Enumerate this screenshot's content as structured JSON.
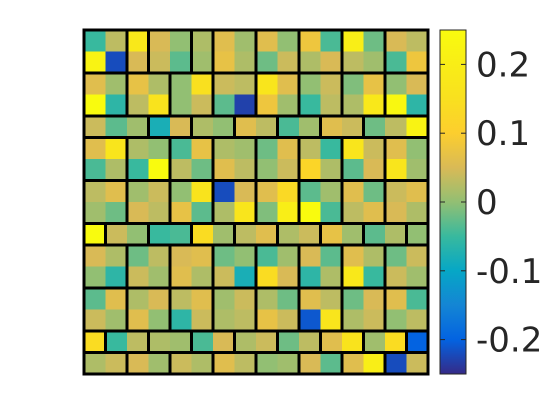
{
  "chart_data": {
    "type": "heatmap",
    "title": "",
    "xlabel": "",
    "ylabel": "",
    "grid_size": [
      16,
      16
    ],
    "colormap": "parula",
    "color_range": [
      -0.25,
      0.25
    ],
    "colorbar": {
      "ticks": [
        0.2,
        0.1,
        0,
        -0.1,
        -0.2
      ],
      "tick_labels": [
        "0.2",
        "0.1",
        "0",
        "-0.1",
        "-0.2"
      ],
      "placement": "right"
    },
    "regions_outlined": true,
    "values": [
      [
        -0.05,
        0.03,
        0.18,
        0.05,
        0.0,
        0.02,
        0.06,
        0.01,
        0.06,
        0.0,
        0.08,
        -0.04,
        0.2,
        -0.02,
        0.05,
        0.03
      ],
      [
        0.22,
        -0.22,
        0.05,
        0.04,
        -0.03,
        0.01,
        0.07,
        0.02,
        -0.02,
        0.04,
        0.02,
        0.05,
        0.03,
        0.01,
        -0.04,
        0.08
      ],
      [
        0.06,
        0.01,
        0.07,
        0.02,
        0.0,
        0.15,
        0.04,
        0.03,
        0.17,
        0.06,
        0.0,
        0.04,
        -0.01,
        0.07,
        0.0,
        0.05
      ],
      [
        0.25,
        -0.06,
        0.03,
        0.16,
        0.0,
        0.04,
        -0.03,
        -0.23,
        0.08,
        0.01,
        -0.05,
        0.03,
        0.02,
        0.18,
        0.24,
        -0.06
      ],
      [
        0.04,
        -0.03,
        0.01,
        -0.08,
        0.05,
        0.02,
        0.0,
        0.06,
        0.03,
        -0.04,
        0.01,
        0.06,
        0.04,
        -0.02,
        0.03,
        0.22
      ],
      [
        0.06,
        0.17,
        0.02,
        0.0,
        -0.04,
        0.07,
        0.02,
        0.01,
        -0.02,
        0.06,
        0.03,
        -0.05,
        0.17,
        0.04,
        0.06,
        0.0
      ],
      [
        -0.04,
        0.02,
        -0.05,
        0.25,
        0.03,
        -0.02,
        0.06,
        0.03,
        0.0,
        0.04,
        0.12,
        0.02,
        -0.03,
        0.05,
        0.17,
        0.01
      ],
      [
        0.03,
        0.06,
        0.01,
        0.04,
        0.0,
        0.16,
        -0.22,
        0.05,
        0.06,
        0.13,
        -0.03,
        0.01,
        0.06,
        -0.02,
        0.04,
        0.06
      ],
      [
        0.01,
        -0.02,
        0.05,
        0.03,
        0.07,
        -0.03,
        0.02,
        0.17,
        -0.01,
        0.2,
        0.25,
        -0.04,
        0.03,
        0.06,
        0.05,
        0.02
      ],
      [
        0.25,
        0.04,
        0.0,
        -0.05,
        -0.04,
        0.14,
        0.01,
        0.03,
        0.06,
        0.02,
        0.04,
        0.07,
        0.01,
        -0.03,
        0.02,
        0.0
      ],
      [
        0.05,
        0.02,
        -0.02,
        0.03,
        0.05,
        0.06,
        -0.02,
        0.0,
        -0.04,
        0.01,
        0.05,
        -0.03,
        0.06,
        0.02,
        -0.02,
        0.04
      ],
      [
        0.0,
        -0.06,
        0.04,
        0.01,
        0.06,
        0.02,
        0.04,
        -0.08,
        0.14,
        0.05,
        -0.06,
        0.02,
        0.18,
        -0.05,
        0.04,
        0.01
      ],
      [
        -0.03,
        0.06,
        0.02,
        0.05,
        0.03,
        0.06,
        0.01,
        0.04,
        0.02,
        -0.02,
        0.06,
        0.03,
        -0.02,
        0.05,
        0.06,
        -0.04
      ],
      [
        0.04,
        0.01,
        0.06,
        0.0,
        -0.06,
        0.04,
        0.02,
        0.03,
        0.07,
        0.04,
        -0.21,
        0.17,
        0.02,
        0.04,
        0.0,
        0.03
      ],
      [
        0.14,
        -0.05,
        0.03,
        0.02,
        0.01,
        -0.04,
        0.05,
        0.02,
        0.04,
        -0.02,
        0.03,
        0.06,
        0.16,
        0.01,
        0.14,
        -0.2
      ],
      [
        0.02,
        0.04,
        0.05,
        0.01,
        0.04,
        0.02,
        0.06,
        0.03,
        0.0,
        0.01,
        0.05,
        -0.03,
        0.06,
        0.2,
        -0.22,
        0.04
      ]
    ],
    "region_labels": [
      [
        0,
        0,
        1,
        2,
        2,
        3,
        4,
        4,
        5,
        5,
        6,
        6,
        7,
        7,
        8,
        8
      ],
      [
        0,
        0,
        1,
        2,
        2,
        3,
        4,
        4,
        5,
        5,
        6,
        6,
        7,
        7,
        8,
        8
      ],
      [
        9,
        9,
        10,
        10,
        11,
        11,
        12,
        12,
        13,
        13,
        14,
        14,
        15,
        15,
        16,
        16
      ],
      [
        9,
        9,
        10,
        10,
        11,
        11,
        12,
        12,
        13,
        13,
        14,
        14,
        15,
        15,
        16,
        16
      ],
      [
        17,
        17,
        17,
        18,
        18,
        19,
        19,
        20,
        20,
        21,
        21,
        22,
        22,
        23,
        23,
        23
      ],
      [
        24,
        24,
        25,
        25,
        26,
        26,
        27,
        27,
        28,
        28,
        29,
        29,
        30,
        30,
        31,
        31
      ],
      [
        24,
        24,
        25,
        25,
        26,
        26,
        27,
        27,
        28,
        28,
        29,
        29,
        30,
        30,
        31,
        31
      ],
      [
        32,
        32,
        33,
        33,
        34,
        34,
        35,
        35,
        36,
        36,
        37,
        37,
        38,
        38,
        39,
        39
      ],
      [
        32,
        32,
        33,
        33,
        34,
        34,
        35,
        35,
        36,
        36,
        37,
        37,
        38,
        38,
        39,
        39
      ],
      [
        40,
        41,
        41,
        42,
        42,
        43,
        43,
        44,
        44,
        45,
        45,
        46,
        46,
        47,
        47,
        48
      ],
      [
        49,
        49,
        50,
        50,
        51,
        51,
        52,
        52,
        53,
        53,
        54,
        54,
        55,
        55,
        56,
        56
      ],
      [
        49,
        49,
        50,
        50,
        51,
        51,
        52,
        52,
        53,
        53,
        54,
        54,
        55,
        55,
        56,
        56
      ],
      [
        57,
        57,
        58,
        58,
        59,
        59,
        60,
        60,
        61,
        61,
        62,
        62,
        63,
        63,
        64,
        64
      ],
      [
        57,
        57,
        58,
        58,
        59,
        59,
        60,
        60,
        61,
        61,
        62,
        62,
        63,
        63,
        64,
        64
      ],
      [
        65,
        66,
        66,
        67,
        67,
        68,
        68,
        69,
        69,
        70,
        70,
        71,
        71,
        72,
        72,
        73
      ],
      [
        74,
        74,
        75,
        75,
        76,
        76,
        77,
        77,
        78,
        78,
        79,
        79,
        80,
        80,
        81,
        81
      ]
    ]
  }
}
